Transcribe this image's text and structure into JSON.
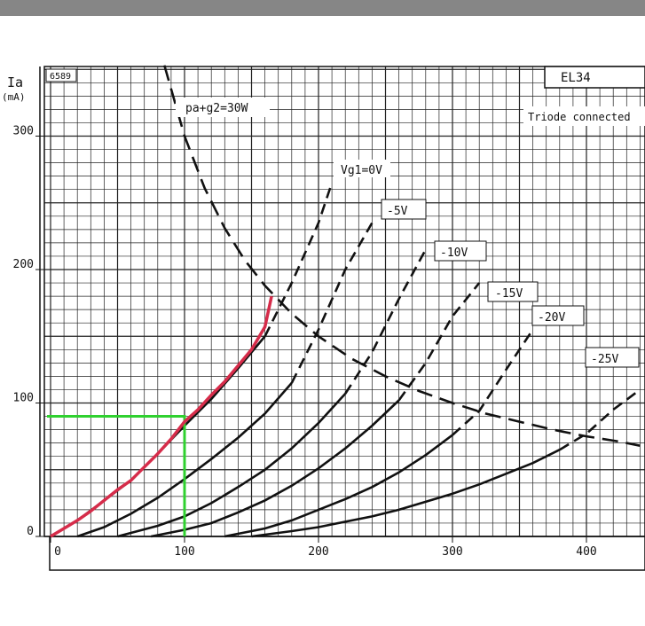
{
  "page": {
    "code": "6589",
    "tube": "EL34",
    "mode_label": "Triode connected",
    "y_symbol": "Ia",
    "y_unit": "(mA)",
    "power_label": "pa+g2=30W"
  },
  "chart_data": {
    "type": "line",
    "title": "EL34",
    "subtitle": "Triode connected",
    "xlabel": "",
    "ylabel": "Ia (mA)",
    "xlim": [
      0,
      440
    ],
    "ylim": [
      0,
      350
    ],
    "x_ticks": [
      "0",
      "100",
      "200",
      "300",
      "400"
    ],
    "y_ticks": [
      "0",
      "100",
      "200",
      "300"
    ],
    "grid": true,
    "series": [
      {
        "name": "Vg1=0V",
        "color": "#111111",
        "x": [
          0,
          20,
          40,
          60,
          80,
          100,
          120,
          140,
          160,
          180,
          200,
          210
        ],
        "y": [
          0,
          12,
          27,
          42,
          62,
          83,
          103,
          126,
          150,
          190,
          235,
          265
        ]
      },
      {
        "name": "-5V",
        "color": "#111111",
        "x": [
          20,
          40,
          60,
          80,
          100,
          120,
          140,
          160,
          180,
          200,
          220,
          240
        ],
        "y": [
          0,
          7,
          17,
          29,
          43,
          58,
          74,
          92,
          115,
          155,
          200,
          235
        ]
      },
      {
        "name": "-10V",
        "color": "#111111",
        "x": [
          50,
          80,
          100,
          120,
          140,
          160,
          180,
          200,
          220,
          240,
          260,
          280
        ],
        "y": [
          0,
          8,
          15,
          25,
          37,
          50,
          66,
          85,
          107,
          138,
          178,
          215
        ]
      },
      {
        "name": "-15V",
        "color": "#111111",
        "x": [
          75,
          100,
          120,
          140,
          160,
          180,
          200,
          220,
          240,
          260,
          280,
          300,
          320
        ],
        "y": [
          0,
          5,
          10,
          18,
          27,
          38,
          51,
          66,
          83,
          102,
          130,
          165,
          190
        ]
      },
      {
        "name": "-20V",
        "color": "#111111",
        "x": [
          130,
          160,
          180,
          200,
          220,
          240,
          260,
          280,
          300,
          320,
          340,
          360
        ],
        "y": [
          0,
          6,
          12,
          20,
          28,
          37,
          48,
          61,
          76,
          94,
          125,
          155
        ]
      },
      {
        "name": "-25V",
        "color": "#111111",
        "x": [
          150,
          180,
          200,
          220,
          240,
          260,
          280,
          300,
          320,
          340,
          360,
          380,
          400,
          420,
          440
        ],
        "y": [
          0,
          4,
          7,
          11,
          15,
          20,
          26,
          32,
          39,
          47,
          55,
          65,
          77,
          95,
          110
        ]
      }
    ],
    "power_curve": {
      "name": "pa+g2=30W",
      "x": [
        85,
        100,
        115,
        130,
        145,
        160,
        180,
        200,
        225,
        250,
        275,
        300,
        325,
        350,
        375,
        400,
        425,
        440
      ],
      "y": [
        353,
        300,
        261,
        231,
        207,
        188,
        167,
        150,
        133,
        120,
        109,
        100,
        92,
        86,
        80,
        75,
        71,
        68
      ]
    },
    "highlight": {
      "curve_color": "#d62c4a",
      "guide_color": "#2fd12f",
      "curve_x": [
        0,
        10,
        20,
        30,
        40,
        50,
        60,
        70,
        80,
        90,
        100,
        110,
        120,
        130,
        140,
        150,
        160,
        165
      ],
      "curve_y": [
        0,
        6,
        12,
        19,
        27,
        35,
        42,
        52,
        62,
        73,
        86,
        95,
        106,
        116,
        128,
        140,
        157,
        180
      ],
      "point_x": 100,
      "point_y": 90
    }
  }
}
